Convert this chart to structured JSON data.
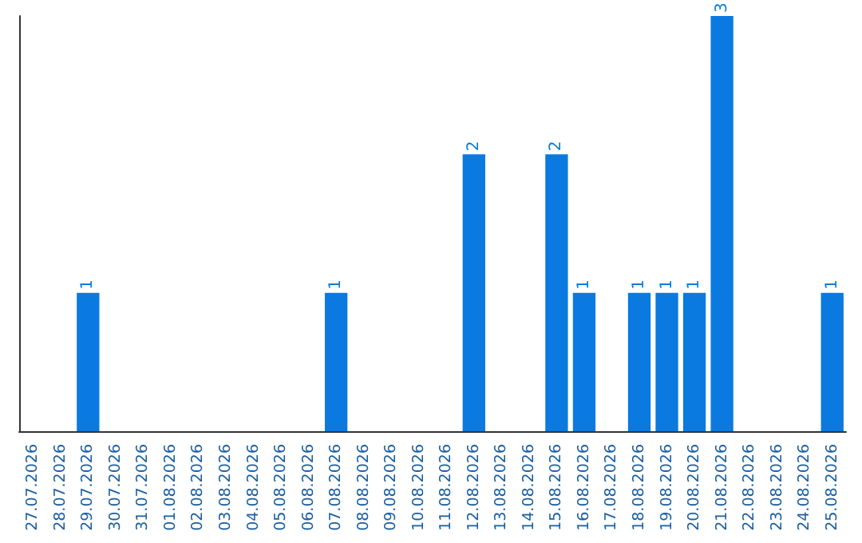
{
  "chart_data": {
    "type": "bar",
    "categories": [
      "27.07.2026",
      "28.07.2026",
      "29.07.2026",
      "30.07.2026",
      "31.07.2026",
      "01.08.2026",
      "02.08.2026",
      "03.08.2026",
      "04.08.2026",
      "05.08.2026",
      "06.08.2026",
      "07.08.2026",
      "08.08.2026",
      "09.08.2026",
      "10.08.2026",
      "11.08.2026",
      "12.08.2026",
      "13.08.2026",
      "14.08.2026",
      "15.08.2026",
      "16.08.2026",
      "17.08.2026",
      "18.08.2026",
      "19.08.2026",
      "20.08.2026",
      "21.08.2026",
      "22.08.2026",
      "23.08.2026",
      "24.08.2026",
      "25.08.2026"
    ],
    "values": [
      0,
      0,
      1,
      0,
      0,
      0,
      0,
      0,
      0,
      0,
      0,
      1,
      0,
      0,
      0,
      0,
      2,
      0,
      0,
      2,
      1,
      0,
      1,
      1,
      1,
      3,
      0,
      0,
      0,
      1
    ],
    "value_labels": [
      null,
      null,
      "1",
      null,
      null,
      null,
      null,
      null,
      null,
      null,
      null,
      "1",
      null,
      null,
      null,
      null,
      "2",
      null,
      null,
      "2",
      "1",
      null,
      "1",
      "1",
      "1",
      "3",
      null,
      null,
      null,
      "1"
    ],
    "color": "#0a7ae0",
    "tick_labels": "x"
  }
}
